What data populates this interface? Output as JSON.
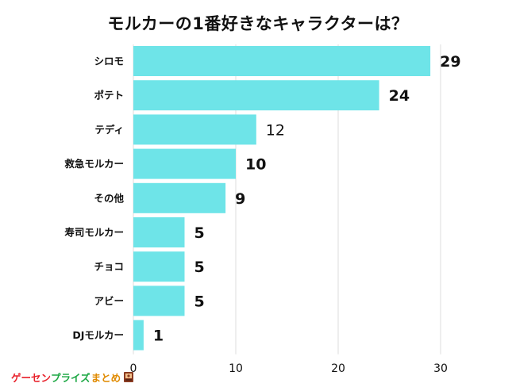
{
  "title": "モルカーの1番好きなキャラクターは？",
  "chart_data": {
    "type": "bar",
    "orientation": "horizontal",
    "categories": [
      "シロモ",
      "ポテト",
      "テディ",
      "救急モルカー",
      "その他",
      "寿司モルカー",
      "チョコ",
      "アビー",
      "DJモルカー"
    ],
    "values": [
      29,
      24,
      12,
      10,
      9,
      5,
      5,
      5,
      1
    ],
    "xlim": [
      0,
      30
    ],
    "xticks": [
      "0",
      "10",
      "20",
      "30"
    ],
    "grid": true,
    "bar_color": "#6ee4e8"
  },
  "brand": {
    "part1": "ゲーセン",
    "part2": "プライズ",
    "part3": "まとめ"
  }
}
